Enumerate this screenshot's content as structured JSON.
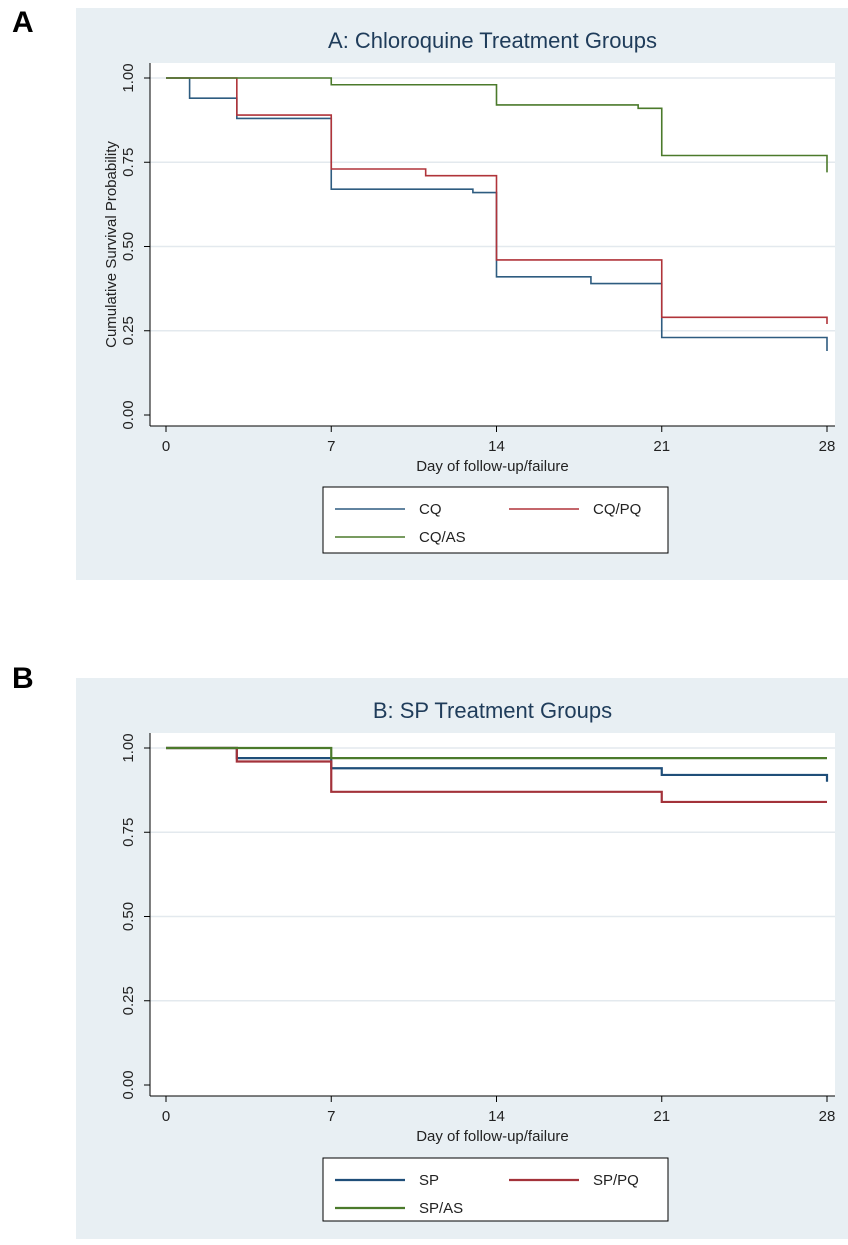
{
  "panels": [
    {
      "letter": "A"
    },
    {
      "letter": "B"
    }
  ],
  "chart_data": [
    {
      "type": "line",
      "step": true,
      "title": "A: Chloroquine Treatment Groups",
      "xlabel": "Day of follow-up/failure",
      "ylabel": "Cumulative Survival Probability",
      "xlim": [
        0,
        28
      ],
      "ylim": [
        0,
        1
      ],
      "xticks": [
        0,
        7,
        14,
        21,
        28
      ],
      "yticks": [
        0.0,
        0.25,
        0.5,
        0.75,
        1.0
      ],
      "ytick_labels": [
        "0.00",
        "0.25",
        "0.50",
        "0.75",
        "1.00"
      ],
      "grid": true,
      "legend_position": "bottom",
      "series": [
        {
          "name": "CQ",
          "color": "#2e5c80",
          "x": [
            0,
            1,
            3,
            7,
            13,
            14,
            18,
            21,
            28
          ],
          "y": [
            1.0,
            0.94,
            0.88,
            0.67,
            0.66,
            0.41,
            0.39,
            0.23,
            0.19
          ]
        },
        {
          "name": "CQ/PQ",
          "color": "#b0343a",
          "x": [
            0,
            3,
            7,
            11,
            14,
            21,
            28
          ],
          "y": [
            1.0,
            0.89,
            0.73,
            0.71,
            0.46,
            0.29,
            0.27
          ]
        },
        {
          "name": "CQ/AS",
          "color": "#4b7a2b",
          "x": [
            0,
            7,
            14,
            20,
            21,
            28
          ],
          "y": [
            1.0,
            0.98,
            0.92,
            0.91,
            0.77,
            0.72
          ]
        }
      ]
    },
    {
      "type": "line",
      "step": true,
      "title": "B: SP Treatment Groups",
      "xlabel": "Day of follow-up/failure",
      "ylabel": "",
      "xlim": [
        0,
        28
      ],
      "ylim": [
        0,
        1
      ],
      "xticks": [
        0,
        7,
        14,
        21,
        28
      ],
      "yticks": [
        0.0,
        0.25,
        0.5,
        0.75,
        1.0
      ],
      "ytick_labels": [
        "0.00",
        "0.25",
        "0.50",
        "0.75",
        "1.00"
      ],
      "grid": true,
      "legend_position": "bottom",
      "series": [
        {
          "name": "SP",
          "color": "#1f4e79",
          "x": [
            0,
            3,
            7,
            21,
            28
          ],
          "y": [
            1.0,
            0.97,
            0.94,
            0.92,
            0.9
          ]
        },
        {
          "name": "SP/PQ",
          "color": "#a3323a",
          "x": [
            0,
            3,
            7,
            21,
            28
          ],
          "y": [
            1.0,
            0.96,
            0.87,
            0.84,
            0.84
          ]
        },
        {
          "name": "SP/AS",
          "color": "#4b7a2b",
          "x": [
            0,
            7,
            28
          ],
          "y": [
            1.0,
            0.97,
            0.97
          ]
        }
      ]
    }
  ]
}
